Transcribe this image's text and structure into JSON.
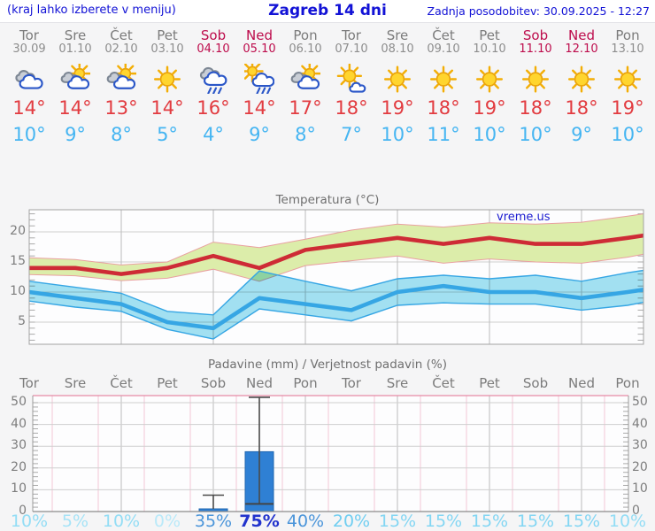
{
  "header": {
    "left_note": "(kraj lahko izberete v meniju)",
    "title": "Zagreb 14 dni",
    "updated": "Zadnja posodobitev: 30.09.2025 - 12:27"
  },
  "colors": {
    "header_blue": "#1212d6",
    "weekend": "#bd0c4c",
    "weekday_gray": "#7b7b7b",
    "max_temp_red": "#e23b40",
    "min_temp_blue": "#45b5f2",
    "bar_blue": "#2f80d4"
  },
  "days": [
    {
      "name": "Tor",
      "date": "30.09",
      "weekend": false,
      "icon": "cloudy",
      "tmax": "14°",
      "tmin": "10°",
      "prob": "10%",
      "prob_color": "#93ddf5",
      "prob_bold": false
    },
    {
      "name": "Sre",
      "date": "01.10",
      "weekend": false,
      "icon": "partly-cloudy",
      "tmax": "14°",
      "tmin": "9°",
      "prob": "5%",
      "prob_color": "#a6e3f7",
      "prob_bold": false
    },
    {
      "name": "Čet",
      "date": "02.10",
      "weekend": false,
      "icon": "partly-cloudy",
      "tmax": "13°",
      "tmin": "8°",
      "prob": "10%",
      "prob_color": "#93ddf5",
      "prob_bold": false
    },
    {
      "name": "Pet",
      "date": "03.10",
      "weekend": false,
      "icon": "sunny",
      "tmax": "14°",
      "tmin": "5°",
      "prob": "0%",
      "prob_color": "#b9e9f9",
      "prob_bold": false
    },
    {
      "name": "Sob",
      "date": "04.10",
      "weekend": true,
      "icon": "rain",
      "tmax": "16°",
      "tmin": "4°",
      "prob": "35%",
      "prob_color": "#4b95da",
      "prob_bold": false
    },
    {
      "name": "Ned",
      "date": "05.10",
      "weekend": true,
      "icon": "sun-shower",
      "tmax": "14°",
      "tmin": "9°",
      "prob": "75%",
      "prob_color": "#2334cd",
      "prob_bold": true
    },
    {
      "name": "Pon",
      "date": "06.10",
      "weekend": false,
      "icon": "partly-cloudy",
      "tmax": "17°",
      "tmin": "8°",
      "prob": "40%",
      "prob_color": "#4b95da",
      "prob_bold": false
    },
    {
      "name": "Tor",
      "date": "07.10",
      "weekend": false,
      "icon": "mostly-sunny",
      "tmax": "18°",
      "tmin": "7°",
      "prob": "20%",
      "prob_color": "#70cef1",
      "prob_bold": false
    },
    {
      "name": "Sre",
      "date": "08.10",
      "weekend": false,
      "icon": "sunny",
      "tmax": "19°",
      "tmin": "10°",
      "prob": "15%",
      "prob_color": "#83d6f3",
      "prob_bold": false
    },
    {
      "name": "Čet",
      "date": "09.10",
      "weekend": false,
      "icon": "sunny",
      "tmax": "18°",
      "tmin": "11°",
      "prob": "15%",
      "prob_color": "#83d6f3",
      "prob_bold": false
    },
    {
      "name": "Pet",
      "date": "10.10",
      "weekend": false,
      "icon": "sunny",
      "tmax": "19°",
      "tmin": "10°",
      "prob": "15%",
      "prob_color": "#83d6f3",
      "prob_bold": false
    },
    {
      "name": "Sob",
      "date": "11.10",
      "weekend": true,
      "icon": "sunny",
      "tmax": "18°",
      "tmin": "10°",
      "prob": "15%",
      "prob_color": "#83d6f3",
      "prob_bold": false
    },
    {
      "name": "Ned",
      "date": "12.10",
      "weekend": true,
      "icon": "sunny",
      "tmax": "18°",
      "tmin": "9°",
      "prob": "15%",
      "prob_color": "#83d6f3",
      "prob_bold": false
    },
    {
      "name": "Pon",
      "date": "13.10",
      "weekend": false,
      "icon": "sunny",
      "tmax": "19°",
      "tmin": "10°",
      "prob": "10%",
      "prob_color": "#93ddf5",
      "prob_bold": false
    }
  ],
  "chart_data": {
    "temperature": {
      "type": "line",
      "title": "Temperatura (°C)",
      "watermark": "vreme.us",
      "categories": [
        "Tor",
        "Sre",
        "Čet",
        "Pet",
        "Sob",
        "Ned",
        "Pon",
        "Tor",
        "Sre",
        "Čet",
        "Pet",
        "Sob",
        "Ned",
        "Pon"
      ],
      "ylim": [
        1.3,
        23.7
      ],
      "yticks": [
        5,
        10,
        15,
        20
      ],
      "x_gridline_day_indices": [
        2,
        4,
        6,
        8,
        10,
        12
      ],
      "series": [
        {
          "name": "max temperature",
          "color": "#ce2b36",
          "values": [
            14,
            14,
            13,
            14,
            16,
            14,
            17,
            18,
            19,
            18,
            19,
            18,
            18,
            19
          ],
          "edge": 19.4
        },
        {
          "name": "min temperature",
          "color": "#36a6e4",
          "values": [
            10,
            9,
            8,
            5,
            4,
            9,
            8,
            7,
            10,
            11,
            10,
            10,
            9,
            10
          ],
          "edge": 10.4
        }
      ],
      "bands": [
        {
          "name": "max range",
          "fill": "#dcedaa",
          "edge_color": "#e9a0a0",
          "upper": [
            15.7,
            15.4,
            14.5,
            15.0,
            18.3,
            17.4,
            18.8,
            20.3,
            21.3,
            20.8,
            21.5,
            21.3,
            21.6,
            22.6
          ],
          "upper_edge": 23.0,
          "lower": [
            12.9,
            12.7,
            11.9,
            12.3,
            13.8,
            11.8,
            14.4,
            15.2,
            16.0,
            14.8,
            15.5,
            15.0,
            14.8,
            15.8
          ],
          "lower_edge": 16.3
        },
        {
          "name": "min range",
          "fill": "#a3e2f2",
          "edge_color": "#36a6e4",
          "upper": [
            11.8,
            10.8,
            9.8,
            6.8,
            6.2,
            13.5,
            11.8,
            10.2,
            12.2,
            12.8,
            12.2,
            12.8,
            11.8,
            13.2
          ],
          "upper_edge": 13.6,
          "lower": [
            8.5,
            7.5,
            6.8,
            3.8,
            2.2,
            7.2,
            6.2,
            5.2,
            7.8,
            8.2,
            8.0,
            8.0,
            7.0,
            7.8
          ],
          "lower_edge": 8.3
        }
      ]
    },
    "precipitation": {
      "type": "bar",
      "title": "Padavine (mm) / Verjetnost padavin (%)",
      "categories": [
        "Tor",
        "Sre",
        "Čet",
        "Pet",
        "Sob",
        "Ned",
        "Pon",
        "Tor",
        "Sre",
        "Čet",
        "Pet",
        "Sob",
        "Ned",
        "Pon"
      ],
      "ylim": [
        0,
        52
      ],
      "yticks": [
        0,
        10,
        20,
        30,
        40,
        50
      ],
      "unit": "mm",
      "values_mm": [
        0,
        0,
        0,
        0,
        1.2,
        27.5,
        0,
        0,
        0,
        0,
        0,
        0,
        0,
        0
      ],
      "probability_pct": [
        10,
        5,
        10,
        0,
        35,
        75,
        40,
        20,
        15,
        15,
        15,
        15,
        15,
        10
      ],
      "whiskers": [
        {
          "day": 4,
          "from": 1.2,
          "to": 7.5
        },
        {
          "day": 5,
          "from": 3.5,
          "to": 52.5
        }
      ],
      "markers": [
        {
          "day": 5,
          "value": 3.5
        }
      ],
      "bar_color": "#2f80d4",
      "x_gridline_day_indices": [
        2,
        4,
        6,
        8,
        10,
        12
      ]
    }
  }
}
